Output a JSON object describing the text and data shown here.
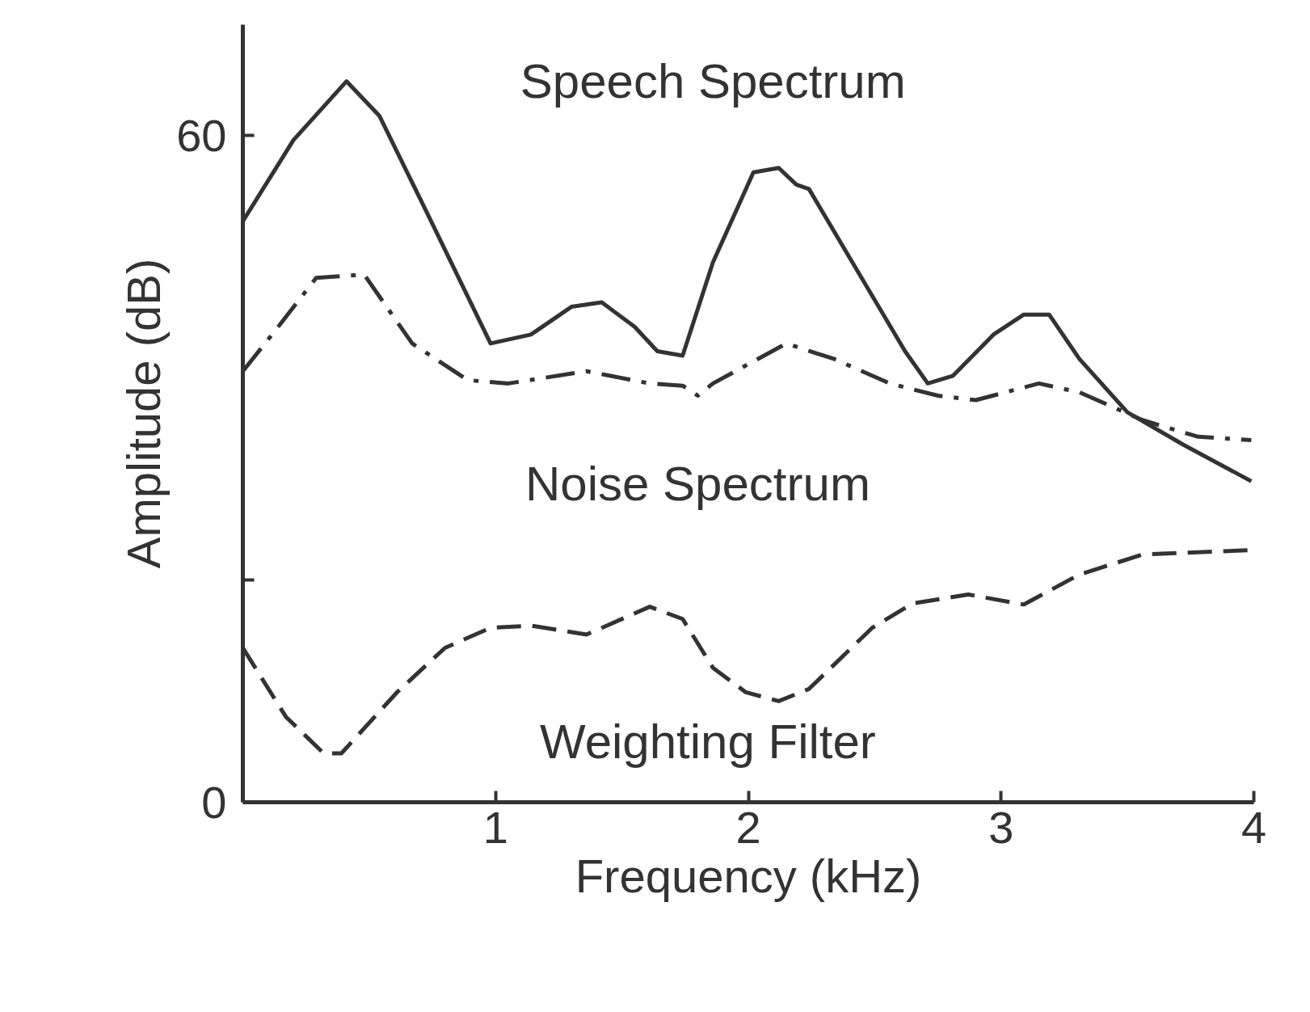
{
  "chart_data": {
    "type": "line",
    "xlabel": "Frequency (kHz)",
    "ylabel": "Amplitude (dB)",
    "xlim": [
      0,
      4
    ],
    "ylim": [
      0,
      70
    ],
    "xticks": [
      {
        "value": 0,
        "label": null
      },
      1,
      2,
      3,
      4
    ],
    "yticks": [
      0,
      {
        "value": 20,
        "label": null
      },
      60
    ],
    "grid": false,
    "legend": false,
    "marker": "none",
    "series": [
      {
        "name": "Speech Spectrum",
        "color": "#333333",
        "line_style": "solid",
        "x": [
          0,
          0.2,
          0.41,
          0.54,
          0.73,
          0.98,
          1.14,
          1.3,
          1.42,
          1.55,
          1.64,
          1.74,
          1.86,
          2.02,
          2.12,
          2.19,
          2.24,
          2.43,
          2.62,
          2.71,
          2.81,
          2.97,
          3.09,
          3.19,
          3.31,
          3.5,
          3.72,
          3.99
        ],
        "values": [
          52.3,
          59.6,
          64.9,
          61.8,
          53.0,
          41.3,
          42.1,
          44.6,
          45.0,
          42.8,
          40.6,
          40.2,
          48.6,
          56.7,
          57.1,
          55.6,
          55.2,
          47.9,
          40.6,
          37.7,
          38.4,
          42.1,
          43.9,
          43.9,
          39.9,
          35.1,
          32.2,
          28.9
        ]
      },
      {
        "name": "Noise Spectrum",
        "color": "#333333",
        "line_style": "dashdot",
        "x": [
          0,
          0.14,
          0.29,
          0.48,
          0.67,
          0.89,
          1.05,
          1.36,
          1.61,
          1.74,
          1.8,
          1.86,
          2.15,
          2.34,
          2.56,
          2.75,
          2.9,
          3.15,
          3.31,
          3.56,
          3.78,
          3.99
        ],
        "values": [
          38.8,
          42.8,
          47.2,
          47.5,
          41.3,
          38.0,
          37.7,
          38.8,
          37.7,
          37.5,
          36.6,
          37.7,
          41.3,
          39.9,
          37.7,
          36.6,
          36.2,
          37.7,
          36.9,
          34.4,
          32.9,
          32.6
        ]
      },
      {
        "name": "Weighting Filter",
        "color": "#333333",
        "line_style": "dashed",
        "x": [
          0,
          0.17,
          0.32,
          0.39,
          0.61,
          0.8,
          0.98,
          1.14,
          1.36,
          1.61,
          1.74,
          1.86,
          1.99,
          2.12,
          2.24,
          2.49,
          2.65,
          2.87,
          3.09,
          3.31,
          3.56,
          3.99
        ],
        "values": [
          13.9,
          7.7,
          4.4,
          4.4,
          9.9,
          13.9,
          15.7,
          15.9,
          15.1,
          17.6,
          16.5,
          12.1,
          9.9,
          9.1,
          10.2,
          15.7,
          17.9,
          18.7,
          17.8,
          20.5,
          22.3,
          22.7
        ]
      }
    ]
  }
}
